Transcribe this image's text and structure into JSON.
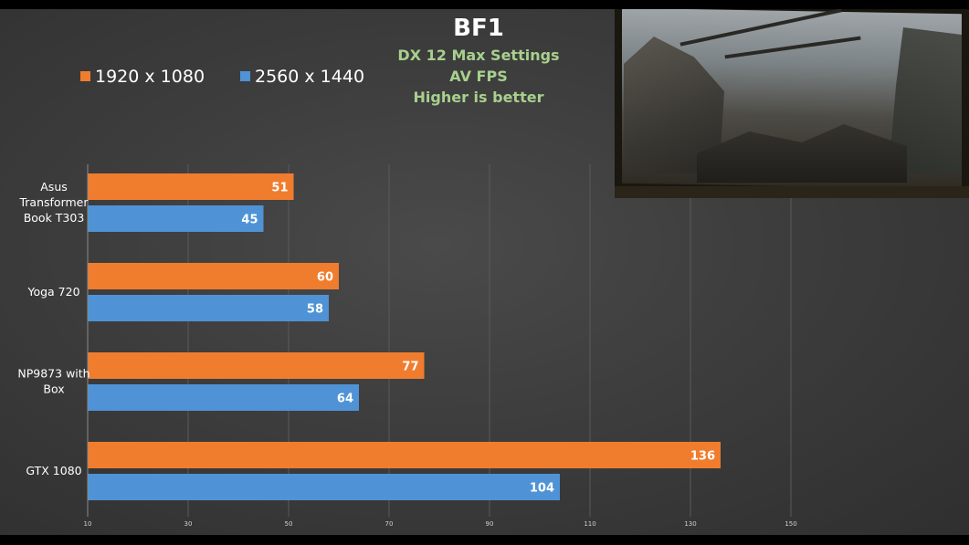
{
  "chart_data": {
    "type": "bar",
    "orientation": "horizontal",
    "title": "BF1",
    "subtitle": [
      "DX 12 Max Settings",
      "AV FPS",
      "Higher is better"
    ],
    "categories": [
      [
        "Asus",
        "Transformer",
        "Book T303"
      ],
      [
        "Yoga 720"
      ],
      [
        "NP9873 with",
        "Box"
      ],
      [
        "GTX 1080"
      ]
    ],
    "series": [
      {
        "name": "1920 x 1080",
        "color": "#f07d2e",
        "values": [
          51,
          60,
          77,
          136
        ]
      },
      {
        "name": "2560 x 1440",
        "color": "#4f93d6",
        "values": [
          45,
          58,
          64,
          104
        ]
      }
    ],
    "xlim": [
      10,
      170
    ],
    "xticks": [
      "10",
      "30",
      "50",
      "70",
      "90",
      "110",
      "130",
      "150"
    ],
    "grid": true,
    "legend": "top-left"
  },
  "inset": {
    "description_icon": "game-screenshot-image"
  },
  "colors": {
    "subtitle": "#a8d08d",
    "background": "#3d3d3d"
  }
}
